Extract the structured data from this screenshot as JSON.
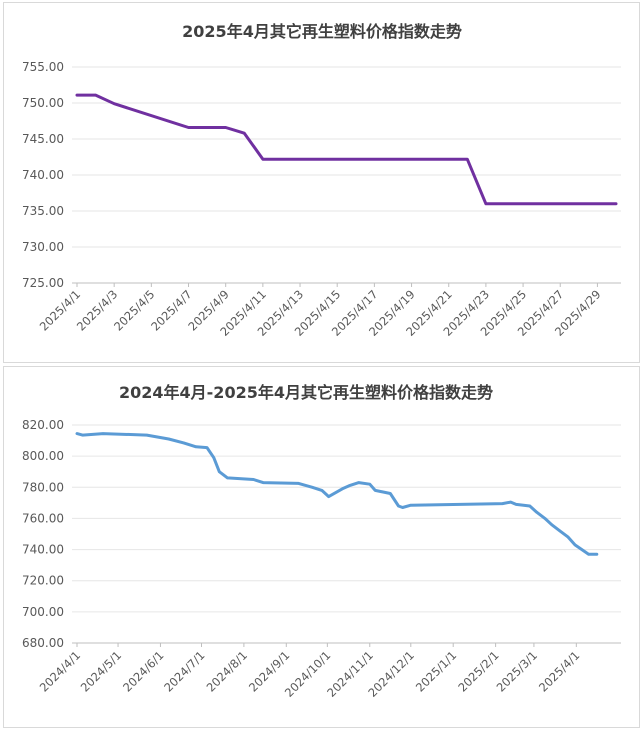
{
  "chart_data": [
    {
      "type": "line",
      "title": "2025年4月其它再生塑料价格指数走势",
      "xlabel": "",
      "ylabel": "",
      "ylim": [
        725,
        755
      ],
      "yticks": [
        "725.00",
        "730.00",
        "735.00",
        "740.00",
        "745.00",
        "750.00",
        "755.00"
      ],
      "xticks": [
        "2025/4/1",
        "2025/4/3",
        "2025/4/5",
        "2025/4/7",
        "2025/4/9",
        "2025/4/11",
        "2025/4/13",
        "2025/4/15",
        "2025/4/17",
        "2025/4/19",
        "2025/4/21",
        "2025/4/23",
        "2025/4/25",
        "2025/4/27",
        "2025/4/29"
      ],
      "color": "#7030A0",
      "grid": true,
      "legend": "none",
      "x": [
        "2025/4/1",
        "2025/4/2",
        "2025/4/3",
        "2025/4/7",
        "2025/4/8",
        "2025/4/9",
        "2025/4/10",
        "2025/4/11",
        "2025/4/21",
        "2025/4/22",
        "2025/4/23",
        "2025/4/30"
      ],
      "values": [
        751.1,
        751.1,
        749.9,
        746.6,
        746.6,
        746.6,
        745.8,
        742.2,
        742.2,
        742.2,
        736.0,
        736.0
      ]
    },
    {
      "type": "line",
      "title": "2024年4月-2025年4月其它再生塑料价格指数走势",
      "xlabel": "",
      "ylabel": "",
      "ylim": [
        680,
        820
      ],
      "yticks": [
        "680.00",
        "700.00",
        "720.00",
        "740.00",
        "760.00",
        "780.00",
        "800.00",
        "820.00"
      ],
      "xticks": [
        "2024/4/1",
        "2024/5/1",
        "2024/6/1",
        "2024/7/1",
        "2024/8/1",
        "2024/9/1",
        "2024/10/1",
        "2024/11/1",
        "2024/12/1",
        "2025/1/1",
        "2025/2/1",
        "2025/3/1",
        "2025/4/1"
      ],
      "color": "#5B9BD5",
      "grid": true,
      "legend": "none",
      "x": [
        "2024/4/1",
        "2024/4/5",
        "2024/4/20",
        "2024/5/22",
        "2024/6/7",
        "2024/6/18",
        "2024/6/27",
        "2024/7/5",
        "2024/7/10",
        "2024/7/14",
        "2024/7/20",
        "2024/8/8",
        "2024/8/15",
        "2024/9/10",
        "2024/9/20",
        "2024/9/27",
        "2024/10/2",
        "2024/10/12",
        "2024/10/17",
        "2024/10/24",
        "2024/11/1",
        "2024/11/5",
        "2024/11/16",
        "2024/11/22",
        "2024/11/25",
        "2024/12/1",
        "2025/2/6",
        "2025/2/12",
        "2025/2/16",
        "2025/2/26",
        "2025/3/3",
        "2025/3/9",
        "2025/3/14",
        "2025/3/20",
        "2025/3/26",
        "2025/3/31",
        "2025/4/10",
        "2025/4/16"
      ],
      "values": [
        814.5,
        813.5,
        814.5,
        813.5,
        811.0,
        808.5,
        806.0,
        805.5,
        799.0,
        790.0,
        786.0,
        785.0,
        783.0,
        782.5,
        780.0,
        778.0,
        774.0,
        779.0,
        781.0,
        783.0,
        782.0,
        778.0,
        776.0,
        768.0,
        767.0,
        768.5,
        769.5,
        770.5,
        769.0,
        768.0,
        764.0,
        760.0,
        756.0,
        752.0,
        748.0,
        743.0,
        737.0,
        737.0
      ]
    }
  ]
}
